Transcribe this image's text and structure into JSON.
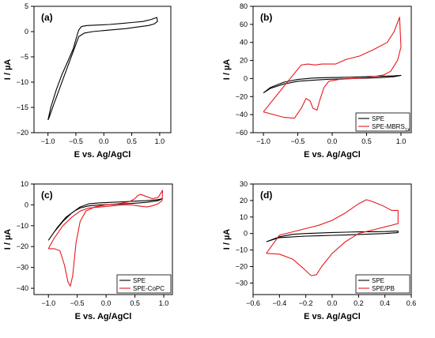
{
  "chart_data": [
    {
      "type": "line",
      "panel_label": "(a)",
      "xlabel": "E vs. Ag/AgCl",
      "ylabel": "I / µA",
      "xlim": [
        -1.25,
        1.2
      ],
      "ylim": [
        -20,
        5
      ],
      "xticks": [
        -1.0,
        -0.5,
        0.0,
        0.5,
        1.0
      ],
      "yticks": [
        5,
        0,
        -5,
        -10,
        -15,
        -20
      ],
      "legend": null,
      "series": [
        {
          "name": "",
          "color": "#000000",
          "x": [
            -1.0,
            -0.95,
            -0.85,
            -0.75,
            -0.65,
            -0.55,
            -0.5,
            -0.45,
            -0.4,
            -0.3,
            -0.1,
            0.1,
            0.3,
            0.5,
            0.7,
            0.85,
            0.95,
            0.96,
            0.9,
            0.8,
            0.6,
            0.4,
            0.2,
            0.0,
            -0.2,
            -0.35,
            -0.45,
            -0.5,
            -0.6,
            -0.7,
            -0.8,
            -0.9,
            -0.98,
            -1.0
          ],
          "y": [
            -17.5,
            -15.0,
            -11.5,
            -8.5,
            -6.0,
            -3.5,
            -1.5,
            0.3,
            1.0,
            1.2,
            1.3,
            1.4,
            1.6,
            1.8,
            2.0,
            2.4,
            2.8,
            2.0,
            1.5,
            1.2,
            0.9,
            0.6,
            0.4,
            0.2,
            0.0,
            -0.3,
            -1.0,
            -2.5,
            -5.5,
            -8.5,
            -11.5,
            -14.5,
            -17.0,
            -17.5
          ]
        }
      ]
    },
    {
      "type": "line",
      "panel_label": "(b)",
      "xlabel": "E vs. Ag/AgCl",
      "ylabel": "I / µA",
      "xlim": [
        -1.15,
        1.15
      ],
      "ylim": [
        -60,
        80
      ],
      "xticks": [
        -1.0,
        -0.5,
        0.0,
        0.5,
        1.0
      ],
      "yticks": [
        80,
        60,
        40,
        20,
        0,
        -20,
        -40,
        -60
      ],
      "legend": {
        "position": "bottom-right",
        "entries": [
          "SPE",
          "SPE-MBRS"
        ],
        "subscript": "1X"
      },
      "series": [
        {
          "name": "SPE",
          "color": "#000000",
          "x": [
            -1.0,
            -0.9,
            -0.7,
            -0.5,
            -0.3,
            -0.1,
            0.1,
            0.3,
            0.5,
            0.7,
            0.9,
            1.0,
            0.9,
            0.7,
            0.5,
            0.3,
            0.1,
            -0.1,
            -0.3,
            -0.5,
            -0.7,
            -0.9,
            -1.0
          ],
          "y": [
            -16,
            -10,
            -4,
            -1,
            0.5,
            1,
            1.2,
            1.5,
            2,
            2.5,
            3,
            3.5,
            2,
            1,
            0.5,
            0,
            -0.5,
            -1,
            -2,
            -3,
            -6,
            -11,
            -16
          ]
        },
        {
          "name": "SPE-MBRS",
          "color": "#e8191f",
          "x": [
            -1.0,
            -0.85,
            -0.7,
            -0.55,
            -0.45,
            -0.38,
            -0.32,
            -0.28,
            -0.22,
            -0.18,
            -0.12,
            -0.05,
            0.1,
            0.3,
            0.5,
            0.6,
            0.75,
            0.85,
            0.95,
            1.0,
            0.98,
            0.9,
            0.8,
            0.6,
            0.4,
            0.2,
            0.05,
            -0.05,
            -0.15,
            -0.25,
            -0.35,
            -0.45,
            -0.6,
            -0.8,
            -1.0
          ],
          "y": [
            -37,
            -40,
            -43,
            -44,
            -33,
            -22,
            -25,
            -33,
            -35,
            -24,
            -10,
            -3,
            -1,
            0,
            1,
            2,
            4,
            8,
            20,
            35,
            68,
            52,
            40,
            32,
            25,
            21,
            16,
            16,
            16,
            15,
            16,
            15,
            1,
            -18,
            -37
          ]
        }
      ]
    },
    {
      "type": "line",
      "panel_label": "(c)",
      "xlabel": "E vs. Ag/AgCl",
      "ylabel": "I / µA",
      "xlim": [
        -1.25,
        1.15
      ],
      "ylim": [
        -43,
        10
      ],
      "xticks": [
        -1.0,
        -0.5,
        0.0,
        0.5,
        1.0
      ],
      "yticks": [
        10,
        0,
        -10,
        -20,
        -30,
        -40
      ],
      "legend": {
        "position": "bottom-right",
        "entries": [
          "SPE",
          "SPE-CoPC"
        ]
      },
      "series": [
        {
          "name": "SPE",
          "color": "#000000",
          "x": [
            -1.0,
            -0.9,
            -0.75,
            -0.6,
            -0.45,
            -0.3,
            -0.1,
            0.1,
            0.3,
            0.5,
            0.7,
            0.9,
            0.98,
            0.9,
            0.7,
            0.5,
            0.3,
            0.1,
            -0.1,
            -0.3,
            -0.45,
            -0.55,
            -0.7,
            -0.85,
            -1.0
          ],
          "y": [
            -17,
            -13,
            -8,
            -4,
            -1,
            0.5,
            1,
            1.2,
            1.5,
            1.8,
            2,
            2.5,
            3,
            2,
            1.2,
            0.8,
            0.5,
            0.2,
            0,
            -0.5,
            -1.5,
            -3,
            -6,
            -11,
            -17
          ]
        },
        {
          "name": "SPE-CoPC",
          "color": "#e8191f",
          "x": [
            -1.0,
            -0.9,
            -0.8,
            -0.72,
            -0.66,
            -0.62,
            -0.58,
            -0.52,
            -0.45,
            -0.35,
            -0.2,
            0.0,
            0.2,
            0.4,
            0.5,
            0.55,
            0.6,
            0.7,
            0.8,
            0.9,
            0.98,
            0.97,
            0.9,
            0.8,
            0.7,
            0.55,
            0.45,
            0.3,
            0.1,
            -0.1,
            -0.3,
            -0.45,
            -0.6,
            -0.75,
            -0.9,
            -1.0
          ],
          "y": [
            -21,
            -21,
            -22,
            -29,
            -37,
            -39,
            -34,
            -18,
            -8,
            -3,
            -1,
            0,
            0.5,
            1.5,
            3,
            4.5,
            5,
            4,
            3,
            3.5,
            7,
            2,
            0.5,
            -0.5,
            -1,
            -0.5,
            0,
            0,
            -0.5,
            -1,
            -1.5,
            -3,
            -6,
            -10,
            -16,
            -21
          ]
        }
      ]
    },
    {
      "type": "line",
      "panel_label": "(d)",
      "xlabel": "E vs. Ag/AgCl",
      "ylabel": "I / µA",
      "xlim": [
        -0.6,
        0.6
      ],
      "ylim": [
        -37,
        30
      ],
      "xticks": [
        -0.6,
        -0.4,
        -0.2,
        0.0,
        0.2,
        0.4,
        0.6
      ],
      "yticks": [
        30,
        20,
        10,
        0,
        -10,
        -20,
        -30
      ],
      "legend": {
        "position": "bottom-right",
        "entries": [
          "SPE",
          "SPE/PB"
        ]
      },
      "series": [
        {
          "name": "SPE",
          "color": "#000000",
          "x": [
            -0.5,
            -0.4,
            -0.3,
            -0.2,
            -0.1,
            0.0,
            0.1,
            0.2,
            0.3,
            0.4,
            0.5,
            0.5,
            0.4,
            0.3,
            0.2,
            0.1,
            0.0,
            -0.1,
            -0.2,
            -0.3,
            -0.4,
            -0.5
          ],
          "y": [
            -5,
            -2,
            -0.5,
            0,
            0.3,
            0.6,
            0.8,
            1,
            1.1,
            1.2,
            1.5,
            0.5,
            0,
            -0.3,
            -0.6,
            -0.9,
            -1.1,
            -1.4,
            -1.6,
            -2,
            -2.5,
            -5
          ]
        },
        {
          "name": "SPE/PB",
          "color": "#e8191f",
          "x": [
            -0.5,
            -0.4,
            -0.3,
            -0.22,
            -0.16,
            -0.12,
            -0.08,
            0.0,
            0.1,
            0.2,
            0.3,
            0.4,
            0.5,
            0.5,
            0.45,
            0.38,
            0.3,
            0.26,
            0.2,
            0.1,
            0.0,
            -0.1,
            -0.2,
            -0.3,
            -0.4,
            -0.5
          ],
          "y": [
            -12,
            -12.5,
            -15.5,
            -21,
            -25.5,
            -25,
            -20,
            -12,
            -5,
            0,
            2,
            4,
            6,
            14,
            14,
            17,
            19.5,
            20.5,
            18,
            12.5,
            8,
            5,
            3,
            1,
            -1,
            -12
          ]
        }
      ]
    }
  ]
}
